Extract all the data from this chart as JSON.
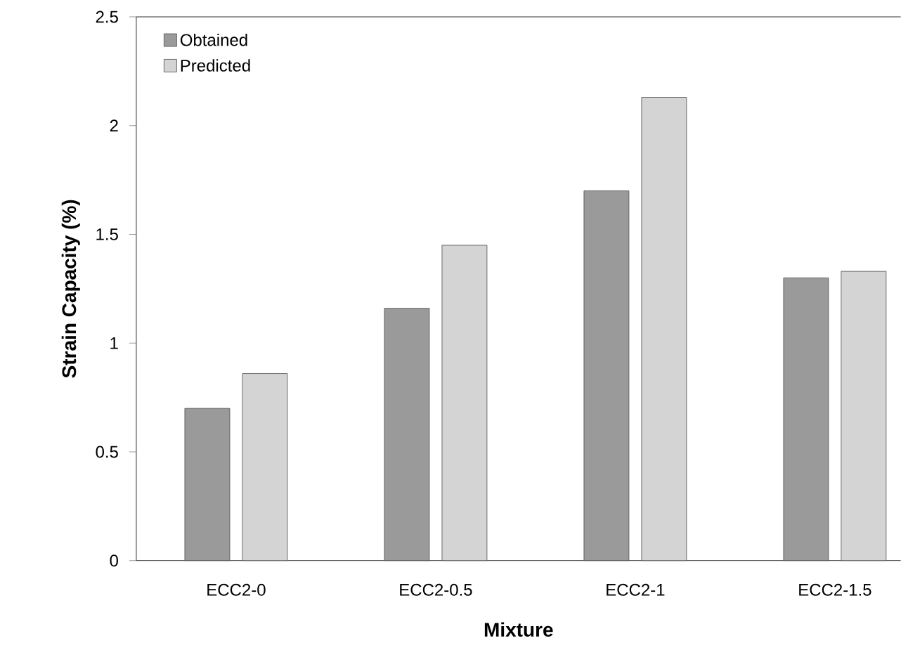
{
  "chart_data": {
    "type": "bar",
    "xlabel": "Mixture",
    "ylabel": "Strain Capacity (%)",
    "categories": [
      "ECC2-0",
      "ECC2-0.5",
      "ECC2-1",
      "ECC2-1.5"
    ],
    "series": [
      {
        "name": "Obtained",
        "color": "#9a9a9a",
        "values": [
          0.7,
          1.16,
          1.7,
          1.3
        ]
      },
      {
        "name": "Predicted",
        "color": "#d4d4d4",
        "values": [
          0.86,
          1.45,
          2.13,
          1.33
        ]
      }
    ],
    "ylim": [
      0,
      2.5
    ],
    "yticks": [
      0,
      0.5,
      1,
      1.5,
      2,
      2.5
    ],
    "grid": false,
    "legend": "top left"
  }
}
